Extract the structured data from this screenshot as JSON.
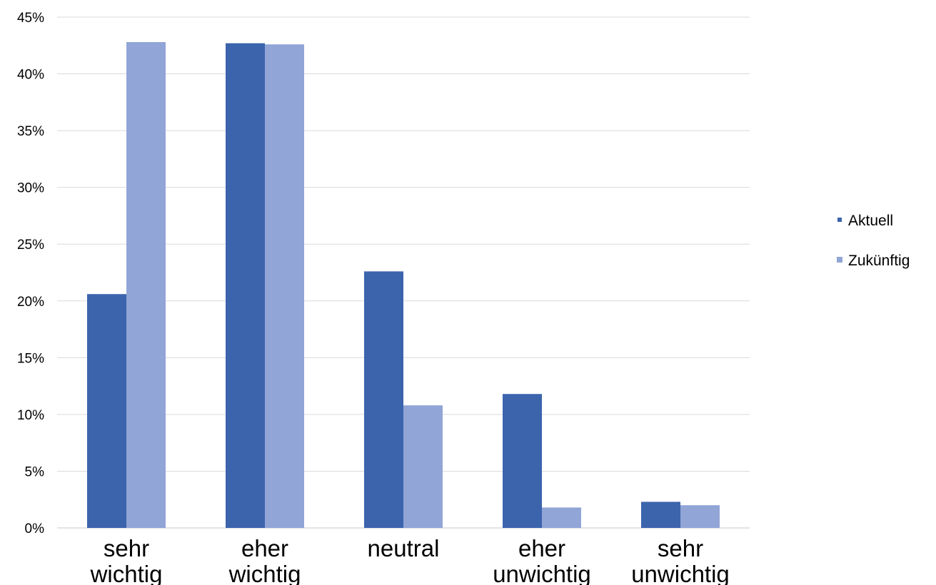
{
  "chart_data": {
    "type": "bar",
    "categories": [
      [
        "sehr",
        "wichtig"
      ],
      [
        "eher",
        "wichtig"
      ],
      [
        "neutral"
      ],
      [
        "eher",
        "unwichtig"
      ],
      [
        "sehr",
        "unwichtig"
      ]
    ],
    "series": [
      {
        "name": "Aktuell",
        "color": "#3c64ad",
        "values": [
          20.6,
          42.7,
          22.6,
          11.8,
          2.3
        ]
      },
      {
        "name": "Zukünftig",
        "color": "#91a5d6",
        "values": [
          42.8,
          42.6,
          10.8,
          1.8,
          2.0
        ]
      }
    ],
    "yticks": [
      "0%",
      "5%",
      "10%",
      "15%",
      "20%",
      "25%",
      "30%",
      "35%",
      "40%",
      "45%"
    ],
    "ylim": [
      0,
      45
    ],
    "grid": true,
    "legend_position": "right",
    "title": "",
    "xlabel": "",
    "ylabel": ""
  }
}
